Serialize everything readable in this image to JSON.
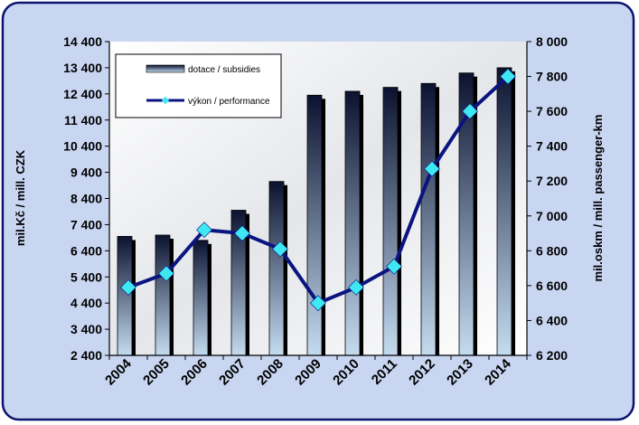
{
  "chart_data": {
    "type": "bar",
    "categories": [
      "2004",
      "2005",
      "2006",
      "2007",
      "2008",
      "2009",
      "2010",
      "2011",
      "2012",
      "2013",
      "2014"
    ],
    "series": [
      {
        "name": "dotace / subsidies",
        "type": "bar",
        "axis": "left",
        "values": [
          6950,
          7000,
          6800,
          7950,
          9050,
          12350,
          12500,
          12650,
          12800,
          13200,
          13400
        ]
      },
      {
        "name": "výkon / performance",
        "type": "line",
        "axis": "right",
        "values": [
          6590,
          6670,
          6920,
          6900,
          6810,
          6500,
          6590,
          6710,
          7270,
          7600,
          7800
        ]
      }
    ],
    "ylabel": "mil.Kč / mill. CZK",
    "y2label": "mil.oskm / mill. passenger-km",
    "ylim": [
      2400,
      14400
    ],
    "y2lim": [
      6200,
      8000
    ],
    "yticks": [
      "2 400",
      "3 400",
      "4 400",
      "5 400",
      "6 400",
      "7 400",
      "8 400",
      "9 400",
      "10 400",
      "11 400",
      "12 400",
      "13 400",
      "14 400"
    ],
    "y2ticks": [
      "6 200",
      "6 400",
      "6 600",
      "6 800",
      "7 000",
      "7 200",
      "7 400",
      "7 600",
      "7 800",
      "8 000"
    ],
    "grid": false,
    "legend_position": "top-left",
    "colors": {
      "frame_bg": "#c9d6f2",
      "frame_border": "#0a1470",
      "bar_light": "#c4dcf0",
      "bar_dark": "#0b1230",
      "bar_shadow": "#000000",
      "line": "#0a1480",
      "marker": "#3ee8f2",
      "text": "#000000"
    }
  }
}
